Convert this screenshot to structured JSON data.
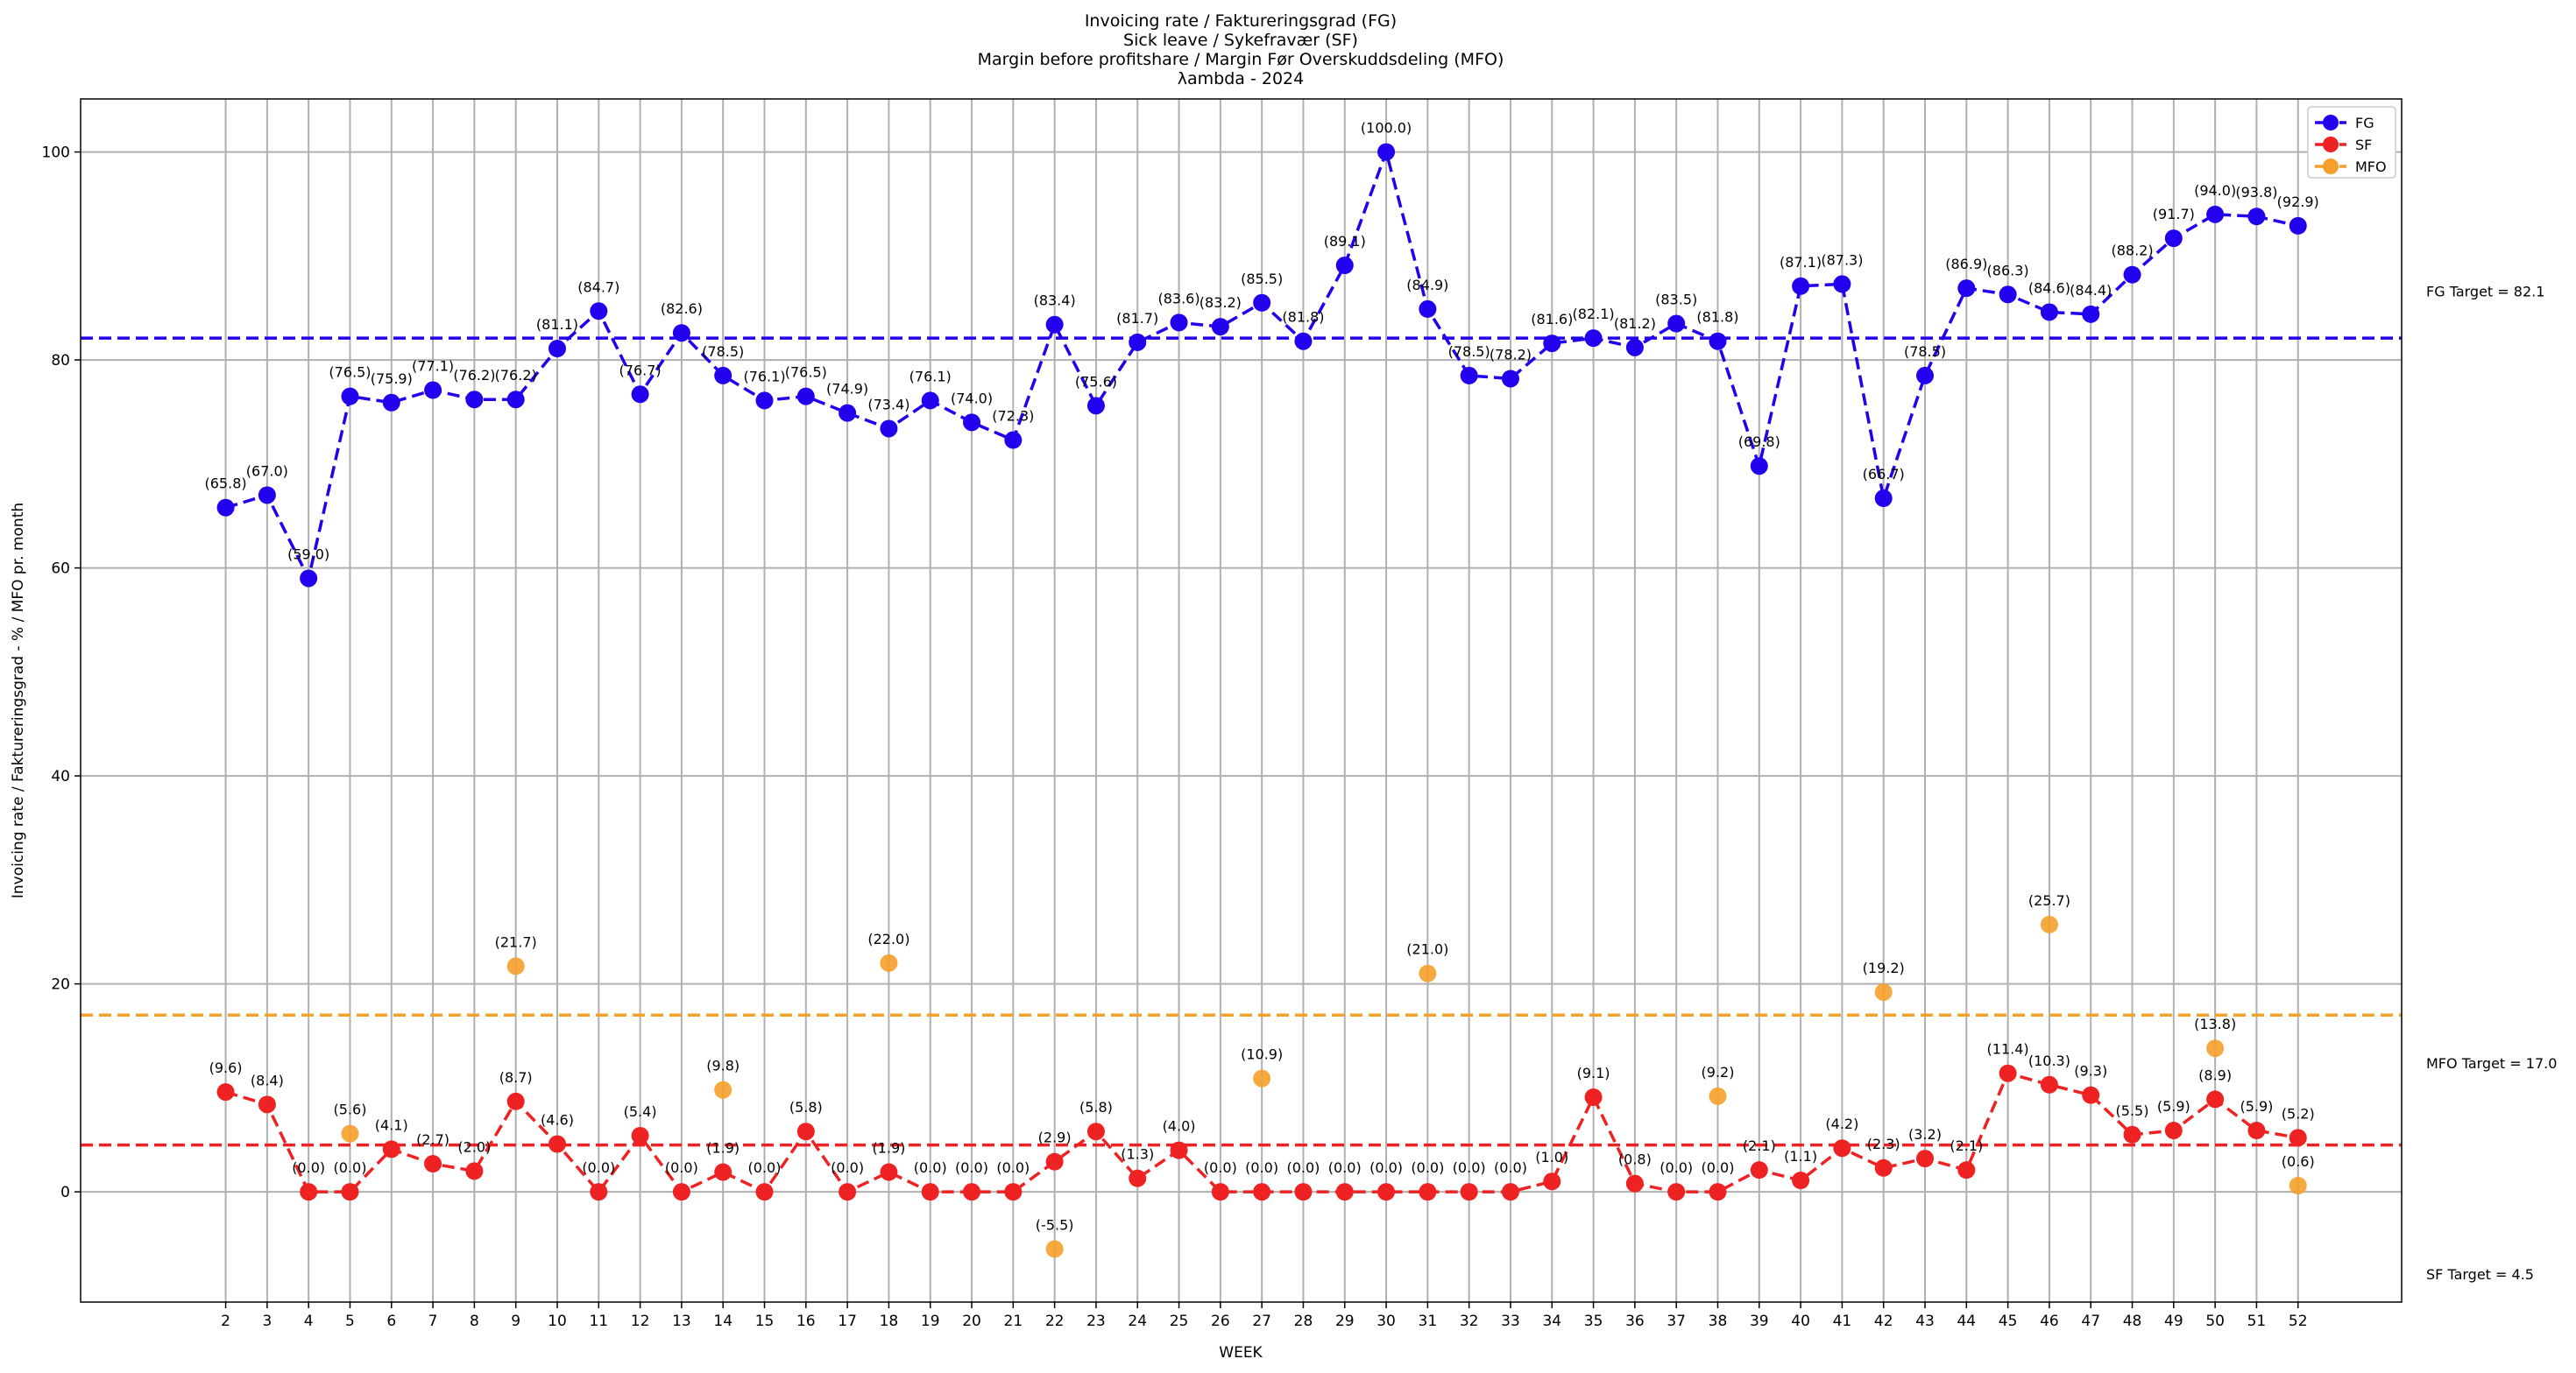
{
  "chart_data": {
    "type": "line",
    "title_lines": [
      "Invoicing rate / Faktureringsgrad (FG)",
      "Sick leave / Sykefravær (SF)",
      "Margin before profitshare / Margin Før Overskuddsdeling (MFO)",
      "λambda - 2024"
    ],
    "xlabel": "WEEK",
    "ylabel": "Invoicing rate / Faktureringsgrad - % / MFO pr. month",
    "x": [
      2,
      3,
      4,
      5,
      6,
      7,
      8,
      9,
      10,
      11,
      12,
      13,
      14,
      15,
      16,
      17,
      18,
      19,
      20,
      21,
      22,
      23,
      24,
      25,
      26,
      27,
      28,
      29,
      30,
      31,
      32,
      33,
      34,
      35,
      36,
      37,
      38,
      39,
      40,
      41,
      42,
      43,
      44,
      45,
      46,
      47,
      48,
      49,
      50,
      51,
      52
    ],
    "xlim": [
      -1.5,
      54.5
    ],
    "ylim": [
      -10.6,
      105.1
    ],
    "yticks": [
      0,
      20,
      40,
      60,
      80,
      100
    ],
    "grid": true,
    "legend_position": "top-right",
    "series": [
      {
        "name": "FG",
        "color": "#2200ee",
        "style": "dashed-with-markers",
        "values": [
          65.8,
          67.0,
          59.0,
          76.5,
          75.9,
          77.1,
          76.2,
          76.2,
          81.1,
          84.7,
          76.7,
          82.6,
          78.5,
          76.1,
          76.5,
          74.9,
          73.4,
          76.1,
          74.0,
          72.3,
          83.4,
          75.6,
          81.7,
          83.6,
          83.2,
          85.5,
          81.8,
          89.1,
          100.0,
          84.9,
          78.5,
          78.2,
          81.6,
          82.1,
          81.2,
          83.5,
          81.8,
          69.8,
          87.1,
          87.3,
          66.7,
          78.5,
          86.9,
          86.3,
          84.6,
          84.4,
          88.2,
          91.7,
          94.0,
          93.8,
          92.9
        ]
      },
      {
        "name": "SF",
        "color": "#ee2222",
        "style": "dashed-with-markers",
        "values": [
          9.6,
          8.4,
          0.0,
          0.0,
          4.1,
          2.7,
          2.0,
          8.7,
          4.6,
          0.0,
          5.4,
          0.0,
          1.9,
          0.0,
          5.8,
          0.0,
          1.9,
          0.0,
          0.0,
          0.0,
          2.9,
          5.8,
          1.3,
          4.0,
          0.0,
          0.0,
          0.0,
          0.0,
          0.0,
          0.0,
          0.0,
          0.0,
          1.0,
          9.1,
          0.8,
          0.0,
          0.0,
          2.1,
          1.1,
          4.2,
          2.3,
          3.2,
          2.1,
          11.4,
          10.3,
          9.3,
          5.5,
          5.9,
          8.9,
          5.9,
          5.2
        ]
      },
      {
        "name": "MFO",
        "color": "#f5a02a",
        "style": "markers",
        "x": [
          5,
          9,
          14,
          18,
          22,
          27,
          31,
          38,
          42,
          46,
          50,
          52
        ],
        "values": [
          5.6,
          21.7,
          9.8,
          22.0,
          -5.5,
          10.9,
          21.0,
          9.2,
          19.2,
          25.7,
          13.8,
          0.6
        ]
      }
    ],
    "targets": [
      {
        "label": "FG Target = 82.1",
        "value": 82.1,
        "color": "#2200ee"
      },
      {
        "label": "MFO Target = 17.0",
        "value": 17.0,
        "color": "#f5a02a"
      },
      {
        "label": "SF Target = 4.5",
        "value": 4.5,
        "color": "#ee2222"
      }
    ]
  }
}
